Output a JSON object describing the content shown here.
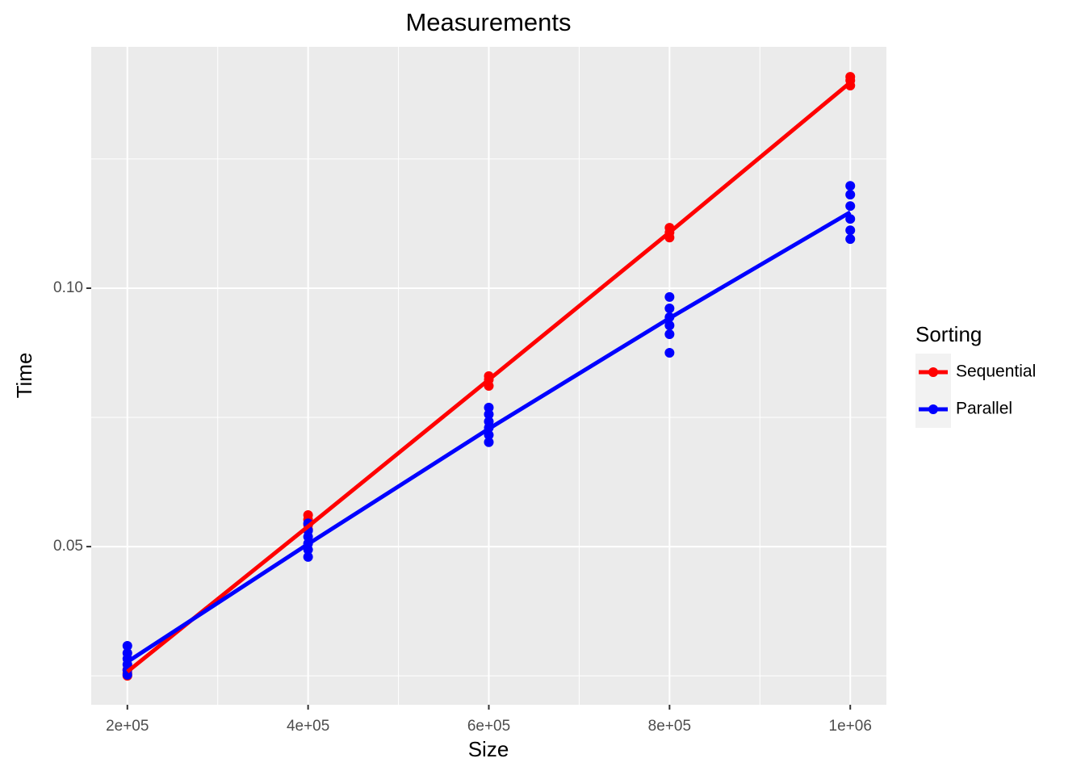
{
  "chart_data": {
    "type": "line",
    "title": "Measurements",
    "x_label": "Size",
    "y_label": "Time",
    "legend_title": "Sorting",
    "legend_position": "right",
    "grid": true,
    "xlim": [
      160000,
      1040000
    ],
    "ylim": [
      0.0194,
      0.1467
    ],
    "xticks": [
      {
        "value": 200000,
        "label": "2e+05"
      },
      {
        "value": 400000,
        "label": "4e+05"
      },
      {
        "value": 600000,
        "label": "6e+05"
      },
      {
        "value": 800000,
        "label": "8e+05"
      },
      {
        "value": 1000000,
        "label": "1e+06"
      }
    ],
    "yticks": [
      {
        "value": 0.1,
        "label": "0.10"
      },
      0.05
    ],
    "xminor": [
      300000,
      500000,
      700000,
      900000
    ],
    "yminor": [
      0.025,
      0.075,
      0.125
    ],
    "series": [
      {
        "name": "Sequential",
        "color": "#ff0000",
        "x": [
          200000,
          400000,
          600000,
          800000,
          1000000
        ],
        "values": [
          0.0258,
          0.0539,
          0.0823,
          0.1108,
          0.1398
        ],
        "points_x": [
          200000,
          200000,
          200000,
          400000,
          400000,
          400000,
          400000,
          600000,
          600000,
          600000,
          800000,
          800000,
          800000,
          1000000,
          1000000,
          1000000
        ],
        "points_y": [
          0.0262,
          0.0255,
          0.025,
          0.0561,
          0.0552,
          0.0542,
          0.0533,
          0.083,
          0.0823,
          0.0811,
          0.1117,
          0.1108,
          0.1098,
          0.1409,
          0.1402,
          0.1392
        ]
      },
      {
        "name": "Parallel",
        "color": "#0000ff",
        "x": [
          200000,
          400000,
          600000,
          800000,
          1000000
        ],
        "values": [
          0.0277,
          0.0505,
          0.0728,
          0.0942,
          0.1147
        ],
        "points_x": [
          200000,
          200000,
          200000,
          200000,
          200000,
          200000,
          400000,
          400000,
          400000,
          400000,
          400000,
          400000,
          600000,
          600000,
          600000,
          600000,
          600000,
          600000,
          800000,
          800000,
          800000,
          800000,
          800000,
          800000,
          1000000,
          1000000,
          1000000,
          1000000,
          1000000,
          1000000
        ],
        "points_y": [
          0.0308,
          0.0294,
          0.0283,
          0.0272,
          0.0261,
          0.0252,
          0.0545,
          0.0531,
          0.0519,
          0.0506,
          0.0494,
          0.048,
          0.0769,
          0.0756,
          0.0742,
          0.073,
          0.0716,
          0.0702,
          0.0983,
          0.0961,
          0.0944,
          0.0928,
          0.0911,
          0.0875,
          0.1198,
          0.1181,
          0.1159,
          0.1134,
          0.1112,
          0.1095
        ]
      }
    ]
  }
}
